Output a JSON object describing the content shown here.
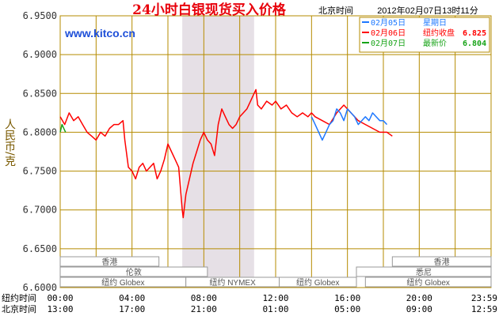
{
  "header": {
    "title": "24小时白银现货买入价格",
    "tz_label": "北京时间",
    "timestamp": "2012年02月07日13时11分",
    "site": "www.kitco.cn"
  },
  "colors": {
    "grid": "#b58b00",
    "band": "#e6e0e6",
    "series_feb5": "#1e78ff",
    "series_feb6": "#ff0000",
    "series_feb7": "#16a316",
    "title": "#e8000b",
    "axis_label": "#7a5a00"
  },
  "chart_data": {
    "type": "line",
    "title": "24小时白银现货买入价格",
    "ylabel": "人民币/克",
    "ylim": [
      6.6,
      6.95
    ],
    "yticks": [
      "6.9500",
      "6.9000",
      "6.8500",
      "6.8000",
      "6.7500",
      "6.7000",
      "6.6500",
      "6.6000"
    ],
    "xtick_rows": [
      {
        "label": "纽约时间",
        "ticks": [
          "00:00",
          "04:00",
          "08:00",
          "12:00",
          "16:00",
          "20:00",
          "23:59"
        ]
      },
      {
        "label": "北京时间",
        "ticks": [
          "13:00",
          "17:00",
          "21:00",
          "01:00",
          "05:00",
          "09:00",
          "12:59"
        ]
      }
    ],
    "shaded_range_ny_hours": [
      6.8,
      10.8
    ],
    "legend": [
      {
        "date": "02月05日",
        "name": "星期日",
        "value": ""
      },
      {
        "date": "02月06日",
        "name": "纽约收盘",
        "value": "6.825"
      },
      {
        "date": "02月07日",
        "name": "最新价",
        "value": "6.804"
      }
    ],
    "sessions": [
      "香港",
      "伦敦",
      "纽约 Globex",
      "纽约 NYMEX",
      "纽约 Globex",
      "悉尼",
      "香港",
      "纽约 Globex"
    ],
    "series": [
      {
        "name": "02月06日",
        "points": [
          [
            0.0,
            6.82
          ],
          [
            0.25,
            6.81
          ],
          [
            0.5,
            6.825
          ],
          [
            0.75,
            6.815
          ],
          [
            1.0,
            6.82
          ],
          [
            1.25,
            6.81
          ],
          [
            1.5,
            6.8
          ],
          [
            1.75,
            6.795
          ],
          [
            2.0,
            6.79
          ],
          [
            2.25,
            6.8
          ],
          [
            2.5,
            6.795
          ],
          [
            2.75,
            6.805
          ],
          [
            3.0,
            6.81
          ],
          [
            3.25,
            6.81
          ],
          [
            3.5,
            6.815
          ],
          [
            3.6,
            6.79
          ],
          [
            3.8,
            6.755
          ],
          [
            4.0,
            6.75
          ],
          [
            4.2,
            6.74
          ],
          [
            4.4,
            6.755
          ],
          [
            4.6,
            6.76
          ],
          [
            4.8,
            6.75
          ],
          [
            5.0,
            6.755
          ],
          [
            5.2,
            6.76
          ],
          [
            5.4,
            6.74
          ],
          [
            5.6,
            6.75
          ],
          [
            5.8,
            6.765
          ],
          [
            6.0,
            6.785
          ],
          [
            6.2,
            6.775
          ],
          [
            6.4,
            6.765
          ],
          [
            6.6,
            6.755
          ],
          [
            6.8,
            6.7
          ],
          [
            6.85,
            6.69
          ],
          [
            7.0,
            6.72
          ],
          [
            7.2,
            6.74
          ],
          [
            7.4,
            6.76
          ],
          [
            7.6,
            6.775
          ],
          [
            7.8,
            6.79
          ],
          [
            8.0,
            6.8
          ],
          [
            8.2,
            6.79
          ],
          [
            8.4,
            6.785
          ],
          [
            8.6,
            6.77
          ],
          [
            8.8,
            6.81
          ],
          [
            9.0,
            6.83
          ],
          [
            9.2,
            6.82
          ],
          [
            9.4,
            6.81
          ],
          [
            9.6,
            6.805
          ],
          [
            9.8,
            6.81
          ],
          [
            10.0,
            6.82
          ],
          [
            10.2,
            6.825
          ],
          [
            10.4,
            6.83
          ],
          [
            10.6,
            6.84
          ],
          [
            10.8,
            6.85
          ],
          [
            10.9,
            6.855
          ],
          [
            11.0,
            6.835
          ],
          [
            11.2,
            6.83
          ],
          [
            11.5,
            6.84
          ],
          [
            11.8,
            6.835
          ],
          [
            12.0,
            6.84
          ],
          [
            12.3,
            6.83
          ],
          [
            12.6,
            6.835
          ],
          [
            12.9,
            6.825
          ],
          [
            13.2,
            6.82
          ],
          [
            13.5,
            6.825
          ],
          [
            13.8,
            6.82
          ],
          [
            14.0,
            6.825
          ],
          [
            14.2,
            6.82
          ],
          [
            14.6,
            6.815
          ],
          [
            15.0,
            6.81
          ],
          [
            15.4,
            6.825
          ],
          [
            15.8,
            6.835
          ],
          [
            16.2,
            6.825
          ],
          [
            16.6,
            6.815
          ],
          [
            17.0,
            6.81
          ],
          [
            17.4,
            6.805
          ],
          [
            17.8,
            6.8
          ],
          [
            18.2,
            6.8
          ],
          [
            18.5,
            6.795
          ]
        ]
      },
      {
        "name": "02月05日",
        "points": [
          [
            14.0,
            6.82
          ],
          [
            14.2,
            6.81
          ],
          [
            14.4,
            6.8
          ],
          [
            14.6,
            6.79
          ],
          [
            14.8,
            6.8
          ],
          [
            15.0,
            6.81
          ],
          [
            15.2,
            6.815
          ],
          [
            15.4,
            6.83
          ],
          [
            15.6,
            6.825
          ],
          [
            15.8,
            6.815
          ],
          [
            16.0,
            6.83
          ],
          [
            16.2,
            6.825
          ],
          [
            16.4,
            6.82
          ],
          [
            16.6,
            6.81
          ],
          [
            16.8,
            6.815
          ],
          [
            17.0,
            6.82
          ],
          [
            17.2,
            6.815
          ],
          [
            17.4,
            6.825
          ],
          [
            17.6,
            6.82
          ],
          [
            17.8,
            6.815
          ],
          [
            18.0,
            6.815
          ],
          [
            18.2,
            6.81
          ]
        ]
      },
      {
        "name": "02月07日",
        "points": [
          [
            0.0,
            6.8
          ],
          [
            0.1,
            6.81
          ],
          [
            0.2,
            6.805
          ],
          [
            0.3,
            6.8
          ]
        ]
      }
    ]
  }
}
